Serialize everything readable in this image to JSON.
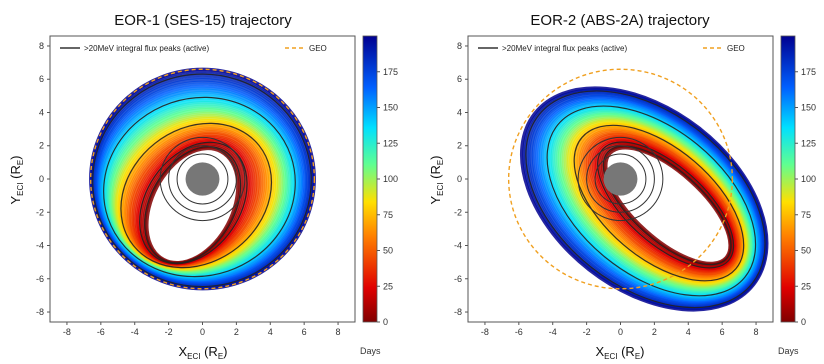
{
  "chart_data": [
    {
      "type": "scatter",
      "title": "EOR-1 (SES-15) trajectory",
      "xlabel": "X_ECI (R_E)",
      "ylabel": "Y_ECI (R_E)",
      "xlabel_main": "X",
      "xlabel_sub": "ECI",
      "xlabel_unit_pre": " (R",
      "xlabel_unit_sub": "E",
      "xlabel_unit_post": ")",
      "ylabel_main": "Y",
      "ylabel_sub": "ECI",
      "ylabel_unit_pre": " (R",
      "ylabel_unit_sub": "E",
      "ylabel_unit_post": ")",
      "xlim": [
        -9,
        9
      ],
      "ylim": [
        -8.6,
        8.6
      ],
      "xticks": [
        "-8",
        "-6",
        "-4",
        "-2",
        "0",
        "2",
        "4",
        "6",
        "8"
      ],
      "yticks": [
        "8",
        "6",
        "4",
        "2",
        "0",
        "-2",
        "-4",
        "-6",
        "-8"
      ],
      "legend": [
        {
          "label": ">20MeV integral flux peaks (active)",
          "style": "solid",
          "color": "#333333"
        },
        {
          "label": "GEO",
          "style": "dashed",
          "color": "#f0a020"
        }
      ],
      "legend_position": "top",
      "geo_radius": 6.6,
      "orbit_start": {
        "a": 3.6,
        "b": 2.4,
        "cx": -0.6,
        "cy": -1.6,
        "angle": 62
      },
      "orbit_end": {
        "a": 6.6,
        "b": 6.6,
        "cx": 0,
        "cy": 0,
        "angle": 0
      },
      "earth_radius": 1.0,
      "reference_circles": [
        1.5,
        2.0,
        2.5
      ]
    },
    {
      "type": "scatter",
      "title": "EOR-2 (ABS-2A) trajectory",
      "xlabel": "X_ECI (R_E)",
      "ylabel": "Y_ECI (R_E)",
      "xlabel_main": "X",
      "xlabel_sub": "ECI",
      "xlabel_unit_pre": " (R",
      "xlabel_unit_sub": "E",
      "xlabel_unit_post": ")",
      "ylabel_main": "Y",
      "ylabel_sub": "ECI",
      "ylabel_unit_pre": " (R",
      "ylabel_unit_sub": "E",
      "ylabel_unit_post": ")",
      "xlim": [
        -9,
        9
      ],
      "ylim": [
        -8.6,
        8.6
      ],
      "xticks": [
        "-8",
        "-6",
        "-4",
        "-2",
        "0",
        "2",
        "4",
        "6",
        "8"
      ],
      "yticks": [
        "8",
        "6",
        "4",
        "2",
        "0",
        "-2",
        "-4",
        "-6",
        "-8"
      ],
      "legend": [
        {
          "label": ">20MeV integral flux peaks (active)",
          "style": "solid",
          "color": "#333333"
        },
        {
          "label": "GEO",
          "style": "dashed",
          "color": "#f0a020"
        }
      ],
      "legend_position": "top",
      "geo_radius": 6.6,
      "orbit_start": {
        "a": 4.6,
        "b": 2.0,
        "cx": 2.8,
        "cy": -1.6,
        "angle": -42
      },
      "orbit_end": {
        "a": 8.2,
        "b": 5.4,
        "cx": 1.4,
        "cy": -1.2,
        "angle": -38
      },
      "earth_radius": 1.0,
      "reference_circles": [
        1.5,
        2.0,
        2.5
      ]
    }
  ],
  "colorbar": {
    "label": "Days",
    "range": [
      0,
      200
    ],
    "ticks": [
      "175",
      "150",
      "125",
      "100",
      "75",
      "50",
      "25",
      "0"
    ],
    "colormap": "jet_r"
  }
}
